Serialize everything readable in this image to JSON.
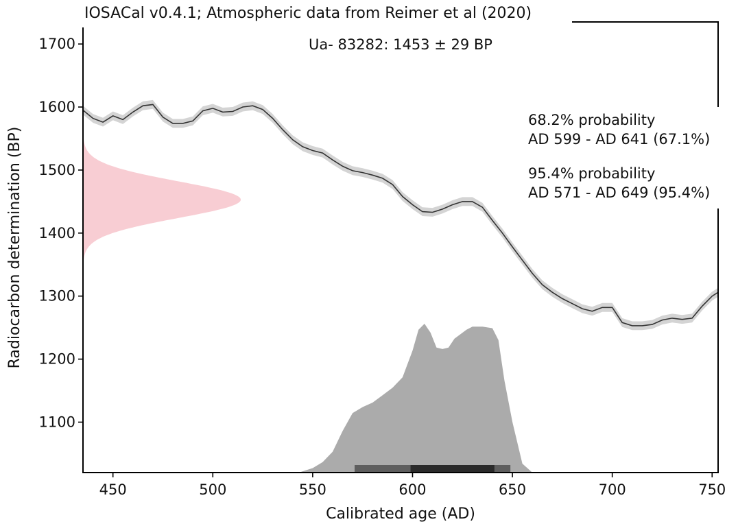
{
  "chart_data": {
    "type": "area",
    "title": "IOSACal v0.4.1; Atmospheric data from Reimer et al (2020)",
    "subtitle": "Ua- 83282: 1453 ± 29 BP",
    "xlabel": "Calibrated age (AD)",
    "ylabel": "Radiocarbon determination (BP)",
    "xlim": [
      435,
      753
    ],
    "ylim": [
      1020,
      1735
    ],
    "x_ticks": [
      450,
      500,
      550,
      600,
      650,
      700,
      750
    ],
    "y_ticks": [
      1100,
      1200,
      1300,
      1400,
      1500,
      1600,
      1700
    ],
    "grid": false,
    "series": [
      {
        "name": "",
        "kind": "calibration-curve",
        "x": [
          435,
          440,
          445,
          450,
          455,
          460,
          465,
          470,
          475,
          480,
          485,
          490,
          495,
          500,
          505,
          510,
          515,
          520,
          525,
          530,
          535,
          540,
          545,
          550,
          555,
          560,
          565,
          570,
          575,
          580,
          585,
          590,
          595,
          600,
          605,
          610,
          615,
          620,
          625,
          630,
          635,
          640,
          645,
          650,
          655,
          660,
          665,
          670,
          675,
          680,
          685,
          690,
          695,
          700,
          705,
          710,
          715,
          720,
          725,
          730,
          735,
          740,
          745,
          750,
          753
        ],
        "y": [
          1595,
          1582,
          1576,
          1586,
          1580,
          1592,
          1602,
          1604,
          1584,
          1574,
          1574,
          1578,
          1594,
          1598,
          1592,
          1593,
          1600,
          1602,
          1596,
          1582,
          1564,
          1548,
          1537,
          1531,
          1527,
          1516,
          1506,
          1499,
          1496,
          1492,
          1487,
          1477,
          1458,
          1445,
          1434,
          1433,
          1438,
          1445,
          1450,
          1450,
          1441,
          1420,
          1400,
          1378,
          1357,
          1336,
          1318,
          1306,
          1296,
          1288,
          1280,
          1276,
          1282,
          1282,
          1258,
          1253,
          1253,
          1255,
          1262,
          1265,
          1263,
          1265,
          1284,
          1300,
          1306
        ],
        "sigma": 7
      },
      {
        "name": "",
        "kind": "radiocarbon-determination",
        "mean": 1453,
        "sd": 29
      },
      {
        "name": "",
        "kind": "calibrated-probability",
        "x": [
          543,
          550,
          555,
          560,
          565,
          570,
          575,
          580,
          585,
          590,
          595,
          600,
          603,
          606,
          609,
          612,
          615,
          618,
          621,
          624,
          627,
          630,
          635,
          640,
          643,
          646,
          650,
          655,
          660
        ],
        "y": [
          0.0,
          0.03,
          0.07,
          0.14,
          0.28,
          0.4,
          0.44,
          0.47,
          0.52,
          0.57,
          0.64,
          0.82,
          0.96,
          1.0,
          0.94,
          0.84,
          0.83,
          0.84,
          0.9,
          0.93,
          0.96,
          0.98,
          0.98,
          0.97,
          0.89,
          0.62,
          0.34,
          0.06,
          0.0
        ]
      }
    ],
    "intervals": [
      {
        "label": "68.2% probability",
        "range": "AD 599 - AD 641 (67.1%)",
        "from": 599,
        "to": 641,
        "color": "#2a2a2a"
      },
      {
        "label": "95.4% probability",
        "range": "AD 571 - AD 649 (95.4%)",
        "from": 571,
        "to": 649,
        "color": "#5e5e5e"
      }
    ],
    "colors": {
      "curve_line": "#333333",
      "curve_band": "#d4d4d4",
      "determination": "#f8cdd3",
      "probability": "#ababab"
    }
  }
}
